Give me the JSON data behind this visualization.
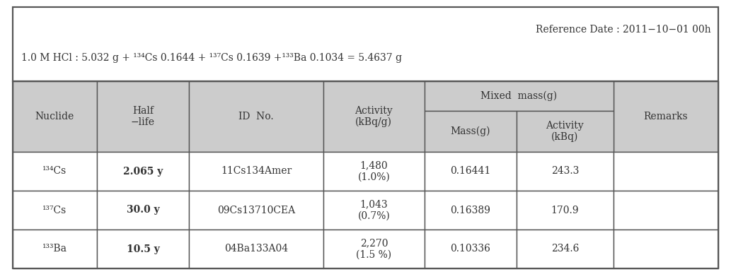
{
  "ref_date_line": "Reference Date : 2011−10−01 00h",
  "header_bg": "#cccccc",
  "white_bg": "#ffffff",
  "outer_bg": "#ffffff",
  "border_color": "#555555",
  "text_color": "#333333",
  "mixed_mass_label": "Mixed  mass(g)",
  "col_headers_main": [
    "Nuclide",
    "Half\n−life",
    "ID  No.",
    "Activity\n(kBq/g)",
    "Remarks"
  ],
  "col_headers_mixed_top": "Mixed  mass(g)",
  "col_headers_mixed_sub": [
    "Mass(g)",
    "Activity\n(kBq)"
  ],
  "rows": [
    {
      "nuclide": "¹³⁴Cs",
      "half_life": "2.065 y",
      "id_no": "11Cs134Amer",
      "activity": "1,480\n(1.0%)",
      "mass": "0.16441",
      "act_kbq": "243.3",
      "remarks": ""
    },
    {
      "nuclide": "¹³⁷Cs",
      "half_life": "30.0 y",
      "id_no": "09Cs13710CEA",
      "activity": "1,043\n(0.7%)",
      "mass": "0.16389",
      "act_kbq": "170.9",
      "remarks": ""
    },
    {
      "nuclide": "¹³³Ba",
      "half_life": "10.5 y",
      "id_no": "04Ba133A04",
      "activity": "2,270\n(1.5 %)",
      "mass": "0.10336",
      "act_kbq": "234.6",
      "remarks": ""
    }
  ],
  "figsize": [
    10.33,
    3.95
  ],
  "dpi": 100
}
